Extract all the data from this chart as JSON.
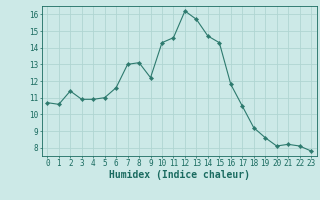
{
  "x": [
    0,
    1,
    2,
    3,
    4,
    5,
    6,
    7,
    8,
    9,
    10,
    11,
    12,
    13,
    14,
    15,
    16,
    17,
    18,
    19,
    20,
    21,
    22,
    23
  ],
  "y": [
    10.7,
    10.6,
    11.4,
    10.9,
    10.9,
    11.0,
    11.6,
    13.0,
    13.1,
    12.2,
    14.3,
    14.6,
    16.2,
    15.7,
    14.7,
    14.3,
    11.8,
    10.5,
    9.2,
    8.6,
    8.1,
    8.2,
    8.1,
    7.8
  ],
  "line_color": "#2d7a6e",
  "marker": "D",
  "marker_size": 2.2,
  "bg_color": "#cce9e7",
  "grid_color": "#b0d5d2",
  "xlabel": "Humidex (Indice chaleur)",
  "xlim": [
    -0.5,
    23.5
  ],
  "ylim": [
    7.5,
    16.5
  ],
  "yticks": [
    8,
    9,
    10,
    11,
    12,
    13,
    14,
    15,
    16
  ],
  "xticks": [
    0,
    1,
    2,
    3,
    4,
    5,
    6,
    7,
    8,
    9,
    10,
    11,
    12,
    13,
    14,
    15,
    16,
    17,
    18,
    19,
    20,
    21,
    22,
    23
  ],
  "tick_label_fontsize": 5.5,
  "xlabel_fontsize": 7.0,
  "tick_color": "#1a6b60",
  "spine_color": "#1a6b60"
}
